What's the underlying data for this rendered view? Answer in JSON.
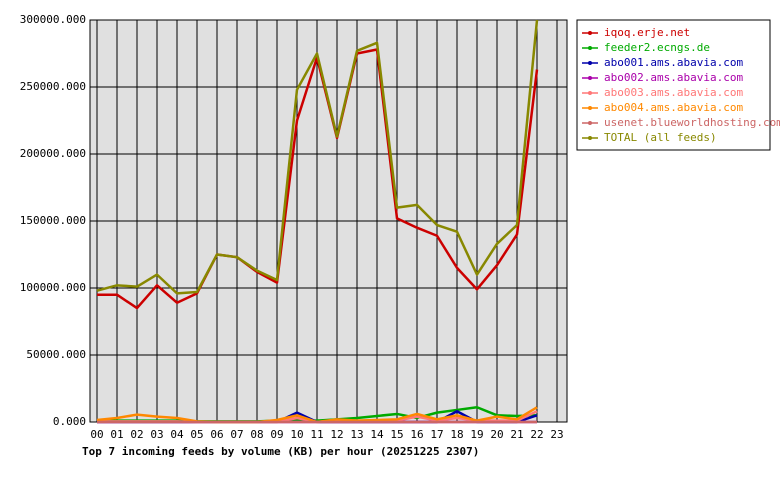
{
  "chart_data": {
    "type": "line",
    "title": "Top 7 incoming feeds by volume (KB) per hour (20251225 2307)",
    "categories": [
      "00",
      "01",
      "02",
      "03",
      "04",
      "05",
      "06",
      "07",
      "08",
      "09",
      "10",
      "11",
      "12",
      "13",
      "14",
      "15",
      "16",
      "17",
      "18",
      "19",
      "20",
      "21",
      "22",
      "23"
    ],
    "ylim": [
      0,
      300000
    ],
    "yticks": [
      {
        "value": 0,
        "label": "0.000"
      },
      {
        "value": 50000,
        "label": "50000.000"
      },
      {
        "value": 100000,
        "label": "100000.000"
      },
      {
        "value": 150000,
        "label": "150000.000"
      },
      {
        "value": 200000,
        "label": "200000.000"
      },
      {
        "value": 250000,
        "label": "250000.000"
      },
      {
        "value": 300000,
        "label": "300000.000"
      }
    ],
    "grid": true,
    "legend": "right",
    "series": [
      {
        "name": "iqoq.erje.net",
        "color": "#cc0000",
        "values": [
          95000,
          95000,
          85000,
          102000,
          89000,
          96000,
          125000,
          123000,
          112000,
          104000,
          225000,
          272000,
          212000,
          275000,
          278000,
          152000,
          145000,
          139000,
          115000,
          99000,
          117000,
          140000,
          263000,
          null
        ]
      },
      {
        "name": "feeder2.ecngs.de",
        "color": "#00aa00",
        "values": [
          1000,
          1000,
          1000,
          1000,
          1000,
          500,
          500,
          500,
          500,
          1000,
          1000,
          1000,
          2000,
          3000,
          4500,
          6000,
          3000,
          7000,
          9000,
          11000,
          5000,
          4500,
          5000,
          null
        ]
      },
      {
        "name": "abo001.ams.abavia.com",
        "color": "#0000aa",
        "values": [
          0,
          0,
          0,
          0,
          0,
          0,
          0,
          0,
          0,
          0,
          7000,
          0,
          0,
          0,
          0,
          0,
          0,
          0,
          8000,
          0,
          0,
          0,
          5000,
          null
        ]
      },
      {
        "name": "abo002.ams.abavia.com",
        "color": "#aa00aa",
        "values": [
          0,
          0,
          0,
          0,
          0,
          0,
          0,
          0,
          0,
          0,
          0,
          0,
          0,
          0,
          0,
          0,
          0,
          0,
          0,
          0,
          0,
          0,
          0,
          null
        ]
      },
      {
        "name": "abo003.ams.abavia.com",
        "color": "#ff7777",
        "values": [
          500,
          500,
          500,
          500,
          500,
          0,
          0,
          0,
          0,
          0,
          3000,
          0,
          1000,
          1000,
          1000,
          1000,
          4000,
          1000,
          3000,
          1000,
          1000,
          1000,
          8000,
          null
        ]
      },
      {
        "name": "abo004.ams.abavia.com",
        "color": "#ff8800",
        "values": [
          1500,
          3000,
          5500,
          4000,
          3000,
          500,
          0,
          0,
          0,
          1500,
          5000,
          0,
          2000,
          1000,
          1500,
          2000,
          6000,
          2000,
          5000,
          1000,
          4000,
          2000,
          11000,
          null
        ]
      },
      {
        "name": "usenet.blueworldhosting.com",
        "color": "#cc6666",
        "values": [
          0,
          0,
          0,
          0,
          0,
          0,
          0,
          0,
          0,
          0,
          0,
          0,
          0,
          0,
          0,
          0,
          0,
          0,
          0,
          0,
          0,
          0,
          0,
          null
        ]
      },
      {
        "name": "TOTAL (all feeds)",
        "color": "#888800",
        "values": [
          98000,
          102000,
          101000,
          110000,
          96000,
          97000,
          125000,
          123000,
          113000,
          106000,
          248000,
          275000,
          213000,
          277000,
          283000,
          160000,
          162000,
          147000,
          142000,
          110000,
          133000,
          147000,
          300000,
          null
        ]
      }
    ]
  }
}
